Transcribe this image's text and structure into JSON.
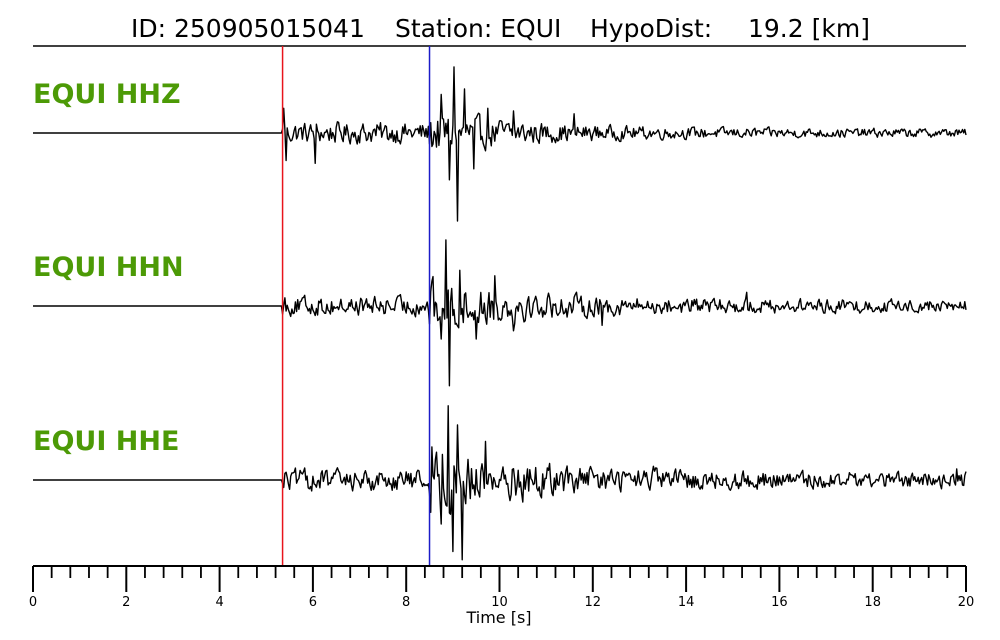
{
  "title": {
    "id_text": "ID: 250905015041",
    "station_text": "Station: EQUI",
    "hypodist_label": "HypoDist:",
    "hypodist_value": "19.2 [km]"
  },
  "colors": {
    "label": "#4c9a06",
    "trace": "#000000",
    "p_pick": "#e8141c",
    "s_pick": "#1c1cc8",
    "axis": "#000000"
  },
  "chart_data": {
    "type": "line",
    "title": "ID: 250905015041   Station: EQUI   HypoDist:     19.2 [km]",
    "xlabel": "Time [s]",
    "xlim": [
      0,
      20
    ],
    "x_ticks": [
      0,
      2,
      4,
      6,
      8,
      10,
      12,
      14,
      16,
      18,
      20
    ],
    "x_tick_labels": [
      "0",
      "2",
      "4",
      "6",
      "8",
      "10",
      "12",
      "14",
      "16",
      "18",
      "20"
    ],
    "minor_tick_step": 0.4,
    "picks": [
      {
        "phase": "P",
        "time": 5.35,
        "color": "#e8141c"
      },
      {
        "phase": "S",
        "time": 8.5,
        "color": "#1c1cc8"
      }
    ],
    "series": [
      {
        "name": "EQUI HHZ",
        "peaks": [
          {
            "t": 5.37,
            "v": 0.45
          },
          {
            "t": 5.42,
            "v": -0.5
          },
          {
            "t": 6.05,
            "v": -0.55
          },
          {
            "t": 8.75,
            "v": 0.7
          },
          {
            "t": 8.92,
            "v": -0.85
          },
          {
            "t": 9.02,
            "v": 1.2
          },
          {
            "t": 9.1,
            "v": -1.6
          },
          {
            "t": 9.25,
            "v": 0.8
          },
          {
            "t": 9.45,
            "v": -0.65
          },
          {
            "t": 9.75,
            "v": 0.45
          },
          {
            "t": 10.3,
            "v": 0.4
          },
          {
            "t": 11.6,
            "v": 0.35
          }
        ],
        "pre_noise": 0.2,
        "s_coda": 0.35,
        "tail_noise": 0.08
      },
      {
        "name": "EQUI HHN",
        "peaks": [
          {
            "t": 5.4,
            "v": 0.15
          },
          {
            "t": 8.55,
            "v": 0.45
          },
          {
            "t": 8.75,
            "v": -0.6
          },
          {
            "t": 8.85,
            "v": 1.2
          },
          {
            "t": 8.92,
            "v": -1.45
          },
          {
            "t": 9.15,
            "v": 0.65
          },
          {
            "t": 9.5,
            "v": -0.6
          },
          {
            "t": 9.9,
            "v": 0.55
          },
          {
            "t": 10.3,
            "v": -0.45
          },
          {
            "t": 12.2,
            "v": -0.35
          },
          {
            "t": 15.3,
            "v": 0.25
          }
        ],
        "pre_noise": 0.18,
        "s_coda": 0.4,
        "tail_noise": 0.12
      },
      {
        "name": "EQUI HHE",
        "peaks": [
          {
            "t": 5.4,
            "v": 0.12
          },
          {
            "t": 8.55,
            "v": 0.6
          },
          {
            "t": 8.75,
            "v": -0.8
          },
          {
            "t": 8.9,
            "v": 1.35
          },
          {
            "t": 9.0,
            "v": -1.3
          },
          {
            "t": 9.1,
            "v": 1.0
          },
          {
            "t": 9.2,
            "v": -1.45
          },
          {
            "t": 9.7,
            "v": 0.7
          },
          {
            "t": 10.5,
            "v": -0.4
          },
          {
            "t": 13.3,
            "v": 0.25
          },
          {
            "t": 19.8,
            "v": 0.2
          }
        ],
        "pre_noise": 0.2,
        "s_coda": 0.45,
        "tail_noise": 0.15
      }
    ]
  }
}
